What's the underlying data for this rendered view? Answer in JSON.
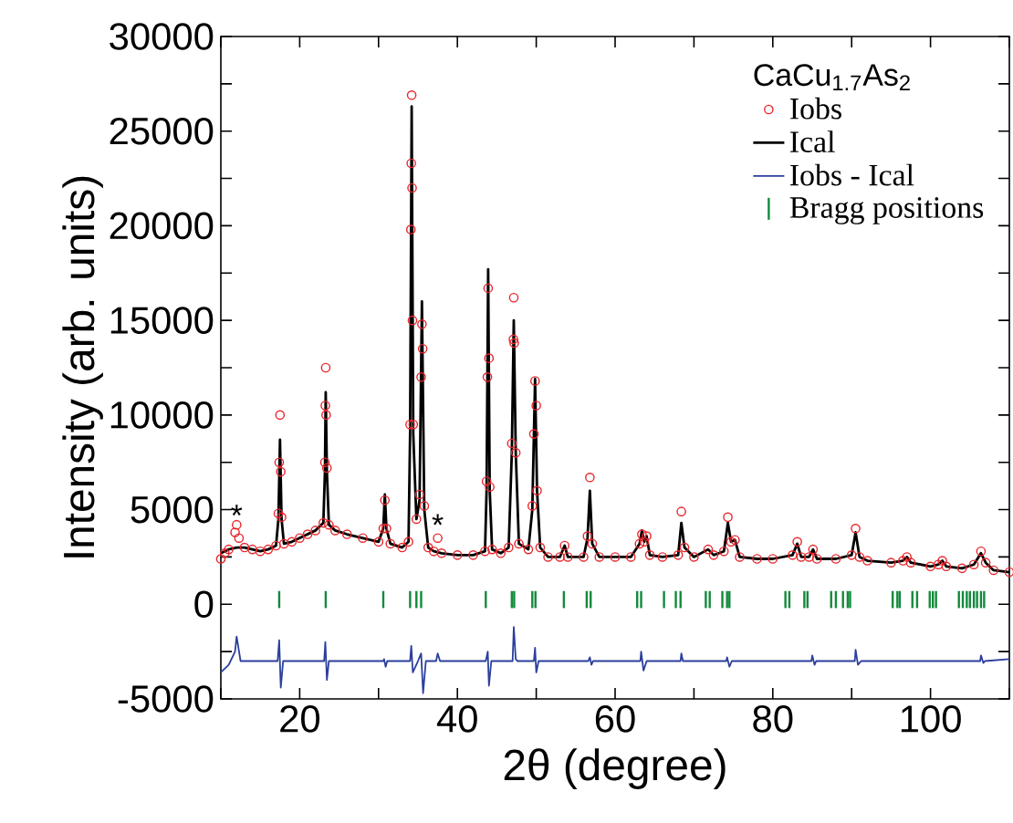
{
  "chart_data": {
    "type": "line",
    "xlabel": "2θ (degree)",
    "ylabel": "Intensity (arb. units)",
    "legend_title": "CaCu$_{1.7}$As$_{2}$",
    "legend": "top right",
    "xlim": [
      10,
      110
    ],
    "ylim": [
      -5000,
      30000
    ],
    "xticks": [
      {
        "value": 10,
        "label": null
      },
      20,
      {
        "value": 30,
        "label": null
      },
      40,
      {
        "value": 50,
        "label": null
      },
      60,
      {
        "value": 70,
        "label": null
      },
      80,
      {
        "value": 90,
        "label": null
      },
      100,
      {
        "value": 110,
        "label": null
      }
    ],
    "yticks": [
      -5000,
      {
        "value": -2500,
        "label": null
      },
      0,
      {
        "value": 2500,
        "label": null
      },
      5000,
      {
        "value": 7500,
        "label": null
      },
      10000,
      {
        "value": 12500,
        "label": null
      },
      15000,
      {
        "value": 17500,
        "label": null
      },
      20000,
      {
        "value": 22500,
        "label": null
      },
      25000,
      {
        "value": 27500,
        "label": null
      },
      30000
    ],
    "annotations": [
      {
        "text": "*",
        "x": 12,
        "y": 4700
      },
      {
        "text": "*",
        "x": 37.5,
        "y": 4200
      }
    ],
    "series": [
      {
        "name": "Iobs",
        "type": "scatter",
        "marker": "circle",
        "color": "#e8252b",
        "x": [
          10,
          10.5,
          11,
          11.8,
          12,
          12.3,
          13,
          14,
          15,
          16,
          17,
          17.3,
          17.4,
          17.5,
          17.6,
          17.7,
          18,
          19,
          20,
          21,
          22,
          23,
          23.2,
          23.25,
          23.3,
          23.35,
          23.45,
          23.7,
          24.5,
          26,
          28,
          30,
          30.6,
          30.8,
          31.0,
          31.5,
          33,
          33.8,
          34.0,
          34.1,
          34.15,
          34.2,
          34.25,
          34.3,
          34.4,
          34.8,
          35.2,
          35.4,
          35.5,
          35.6,
          35.8,
          36.3,
          37,
          37.5,
          38,
          40,
          42,
          43.5,
          43.7,
          43.8,
          43.9,
          44.0,
          44.1,
          44.4,
          45.5,
          46.5,
          46.9,
          47.1,
          47.15,
          47.2,
          47.4,
          47.8,
          49,
          49.5,
          49.7,
          49.85,
          50.0,
          50.1,
          50.5,
          51.5,
          53,
          53.6,
          54,
          56,
          56.5,
          56.8,
          57.1,
          58,
          60,
          62,
          63.1,
          63.4,
          63.7,
          64,
          64.4,
          66,
          68,
          68.4,
          68.8,
          70,
          71.8,
          72.5,
          73.8,
          74.3,
          74.7,
          75.2,
          75.8,
          78,
          80,
          82.5,
          83.1,
          83.6,
          84.6,
          85.1,
          85.6,
          88,
          90,
          90.5,
          91,
          92,
          95,
          96.5,
          97,
          97.5,
          100,
          101,
          101.5,
          102,
          104,
          105.5,
          106.4,
          107,
          108,
          110
        ],
        "values": [
          2400,
          2700,
          2900,
          3800,
          4200,
          3500,
          3000,
          2900,
          2800,
          2900,
          3100,
          4800,
          7500,
          10000,
          7000,
          4600,
          3200,
          3300,
          3500,
          3700,
          3900,
          4300,
          7500,
          10500,
          12500,
          10000,
          7200,
          4200,
          3900,
          3700,
          3500,
          3300,
          4000,
          5500,
          4000,
          3200,
          3000,
          3300,
          9500,
          19800,
          23300,
          26900,
          22000,
          15000,
          9500,
          4500,
          5800,
          12000,
          14800,
          13500,
          5200,
          3000,
          2800,
          3500,
          2700,
          2600,
          2600,
          2800,
          6500,
          12000,
          16700,
          13000,
          6200,
          2900,
          2700,
          3000,
          8500,
          14000,
          16200,
          13800,
          8000,
          3200,
          2900,
          5200,
          9000,
          11800,
          10500,
          6000,
          3000,
          2500,
          2500,
          3100,
          2500,
          2500,
          3600,
          6700,
          3200,
          2500,
          2500,
          2500,
          3200,
          3700,
          3300,
          3600,
          2600,
          2500,
          2600,
          4900,
          3000,
          2500,
          2900,
          2600,
          2800,
          4600,
          3300,
          3400,
          2500,
          2400,
          2400,
          2600,
          3300,
          2500,
          2500,
          2900,
          2400,
          2400,
          2600,
          4000,
          2500,
          2300,
          2200,
          2300,
          2500,
          2200,
          2000,
          2100,
          2300,
          2000,
          1900,
          2100,
          2800,
          2200,
          1800,
          1700
        ]
      },
      {
        "name": "Ical",
        "color": "#000000",
        "x": [
          10,
          10.5,
          11,
          12,
          13,
          14,
          15,
          16,
          17,
          17.3,
          17.5,
          17.7,
          18,
          19,
          20,
          21,
          22,
          23,
          23.2,
          23.3,
          23.45,
          23.7,
          24.5,
          26,
          28,
          30,
          30.6,
          30.8,
          31.0,
          31.5,
          33,
          33.8,
          34.0,
          34.2,
          34.4,
          34.8,
          35.2,
          35.5,
          35.8,
          36.3,
          37,
          38,
          40,
          42,
          43.5,
          43.7,
          43.9,
          44.1,
          44.4,
          45.5,
          46.5,
          46.9,
          47.15,
          47.4,
          47.8,
          49,
          49.5,
          49.85,
          50.1,
          50.5,
          51.5,
          53,
          53.6,
          54,
          56,
          56.5,
          56.8,
          57.1,
          58,
          60,
          62,
          63.1,
          63.4,
          63.7,
          64,
          64.4,
          66,
          68,
          68.4,
          68.8,
          70,
          71.8,
          72.5,
          73.8,
          74.3,
          74.7,
          75.2,
          75.8,
          78,
          80,
          82.5,
          83.1,
          83.6,
          84.6,
          85.1,
          85.6,
          88,
          90,
          90.5,
          91,
          92,
          95,
          96.5,
          97,
          97.5,
          100,
          101,
          101.5,
          102,
          104,
          105.5,
          106.4,
          107,
          108,
          110
        ],
        "values": [
          2700,
          2800,
          2900,
          3000,
          3000,
          2900,
          2800,
          2900,
          3100,
          4500,
          8700,
          4500,
          3200,
          3300,
          3500,
          3700,
          3900,
          4300,
          7000,
          11200,
          7000,
          4200,
          3900,
          3700,
          3500,
          3300,
          4000,
          5800,
          4000,
          3200,
          3000,
          3300,
          9000,
          26300,
          9000,
          4500,
          5500,
          16000,
          5000,
          3000,
          2800,
          2700,
          2600,
          2600,
          2800,
          6000,
          17700,
          6000,
          2900,
          2700,
          3000,
          8000,
          15000,
          8000,
          3200,
          2900,
          5000,
          11900,
          6000,
          3000,
          2500,
          2500,
          3100,
          2500,
          2500,
          3500,
          6000,
          3200,
          2500,
          2500,
          2500,
          3200,
          3900,
          3300,
          3600,
          2600,
          2500,
          2600,
          4300,
          3000,
          2500,
          2900,
          2600,
          2800,
          4300,
          3300,
          3400,
          2500,
          2400,
          2400,
          2600,
          3200,
          2500,
          2500,
          2900,
          2400,
          2400,
          2600,
          3800,
          2500,
          2300,
          2200,
          2300,
          2500,
          2200,
          2000,
          2100,
          2300,
          2000,
          1900,
          2100,
          2700,
          2200,
          1800,
          1700
        ]
      },
      {
        "name": "Iobs - Ical",
        "color": "#2b3f9c",
        "x": [
          10,
          11,
          11.8,
          12,
          12.5,
          17.2,
          17.4,
          17.6,
          17.9,
          23.1,
          23.25,
          23.45,
          23.7,
          30.6,
          30.7,
          30.9,
          31.1,
          34.0,
          34.15,
          34.35,
          35.0,
          35.4,
          35.65,
          36,
          37.3,
          37.5,
          37.8,
          43.6,
          43.85,
          44.0,
          44.3,
          47.0,
          47.15,
          47.4,
          47.6,
          49.7,
          49.85,
          50.0,
          50.3,
          56.6,
          56.8,
          57,
          57.2,
          63.2,
          63.3,
          63.6,
          64,
          68.3,
          68.4,
          68.6,
          74.1,
          74.2,
          74.5,
          74.8,
          84.9,
          85,
          85.3,
          85.5,
          90.4,
          90.5,
          90.8,
          91.2,
          106.3,
          106.4,
          106.7,
          106.9,
          110
        ],
        "values": [
          -3600,
          -3200,
          -2500,
          -1700,
          -3000,
          -3000,
          -1900,
          -4400,
          -3000,
          -3000,
          -2000,
          -4000,
          -3000,
          -3000,
          -2900,
          -3300,
          -3000,
          -3000,
          -2200,
          -3600,
          -3000,
          -2600,
          -4700,
          -3000,
          -3000,
          -2600,
          -3000,
          -3000,
          -2500,
          -4300,
          -3000,
          -3000,
          -1200,
          -2900,
          -3000,
          -3000,
          -2300,
          -3600,
          -3000,
          -3000,
          -2800,
          -3200,
          -3000,
          -3000,
          -2500,
          -3500,
          -3000,
          -3000,
          -2600,
          -3000,
          -3000,
          -2800,
          -3300,
          -3000,
          -3000,
          -2700,
          -3200,
          -3000,
          -3000,
          -2400,
          -3200,
          -3000,
          -3000,
          -2700,
          -3100,
          -3000,
          -2900
        ]
      },
      {
        "name": "Bragg positions",
        "type": "bar",
        "color": "#138a3c",
        "base": [
          -200,
          -200,
          -200,
          -200,
          -200,
          -200,
          -200,
          -200,
          -200,
          -200,
          -200,
          -200,
          -200,
          -200,
          -200,
          -200,
          -200,
          -200,
          -200,
          -200,
          -200,
          -200,
          -200,
          -200,
          -200,
          -200,
          -200,
          -200,
          -200,
          -200,
          -200,
          -200,
          -200,
          -200,
          -200,
          -200,
          -200,
          -200,
          -200,
          -200,
          -200,
          -200,
          -200,
          -200,
          -200,
          -200,
          -200,
          -200,
          -200
        ],
        "x": [
          17.4,
          23.3,
          30.6,
          34.0,
          34.8,
          35.4,
          43.6,
          46.9,
          47.2,
          49.5,
          49.9,
          53.5,
          56.4,
          56.9,
          62.8,
          63.3,
          66.2,
          67.7,
          68.3,
          71.5,
          72.0,
          73.6,
          74.2,
          74.5,
          81.6,
          82.1,
          84.0,
          84.4,
          87.4,
          88.0,
          88.9,
          89.5,
          89.8,
          95.2,
          95.8,
          96.1,
          97.7,
          98.3,
          99.9,
          100.3,
          100.7,
          103.6,
          104.1,
          104.6,
          105.0,
          105.5,
          105.9,
          106.4,
          106.8
        ],
        "values": [
          900,
          900,
          900,
          900,
          900,
          900,
          900,
          900,
          900,
          900,
          900,
          900,
          900,
          900,
          900,
          900,
          900,
          900,
          900,
          900,
          900,
          900,
          900,
          900,
          900,
          900,
          900,
          900,
          900,
          900,
          900,
          900,
          900,
          900,
          900,
          900,
          900,
          900,
          900,
          900,
          900,
          900,
          900,
          900,
          900,
          900,
          900,
          900,
          900
        ]
      }
    ]
  }
}
